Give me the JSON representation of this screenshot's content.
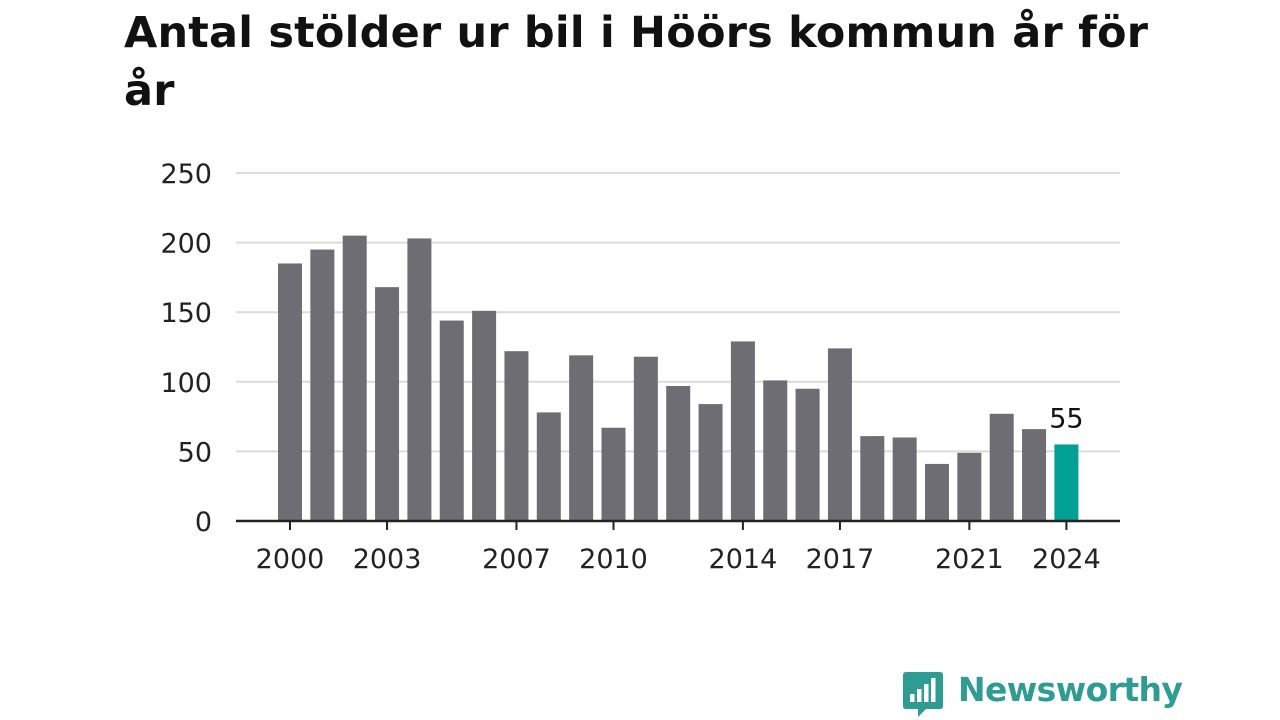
{
  "title": "Antal stölder ur bil i Höörs kommun år för år",
  "brand": {
    "name": "Newsworthy",
    "color": "#2e9c92"
  },
  "chart_data": {
    "type": "bar",
    "title": "Antal stölder ur bil i Höörs kommun år för år",
    "xlabel": "",
    "ylabel": "",
    "ylim": [
      0,
      250
    ],
    "yticks": [
      0,
      50,
      100,
      150,
      200,
      250
    ],
    "grid": true,
    "categories": [
      2000,
      2001,
      2002,
      2003,
      2004,
      2005,
      2006,
      2007,
      2008,
      2009,
      2010,
      2011,
      2012,
      2013,
      2014,
      2015,
      2016,
      2017,
      2018,
      2019,
      2020,
      2021,
      2022,
      2023,
      2024
    ],
    "xtick_labels": [
      2000,
      2003,
      2007,
      2010,
      2014,
      2017,
      2021,
      2024
    ],
    "values": [
      185,
      195,
      205,
      168,
      203,
      144,
      151,
      122,
      78,
      119,
      67,
      118,
      97,
      84,
      129,
      101,
      95,
      124,
      61,
      60,
      41,
      49,
      77,
      66,
      55
    ],
    "bar_color": "#6e6d74",
    "highlight": {
      "category": 2024,
      "value": 55,
      "label": "55",
      "color": "#00a095"
    }
  }
}
